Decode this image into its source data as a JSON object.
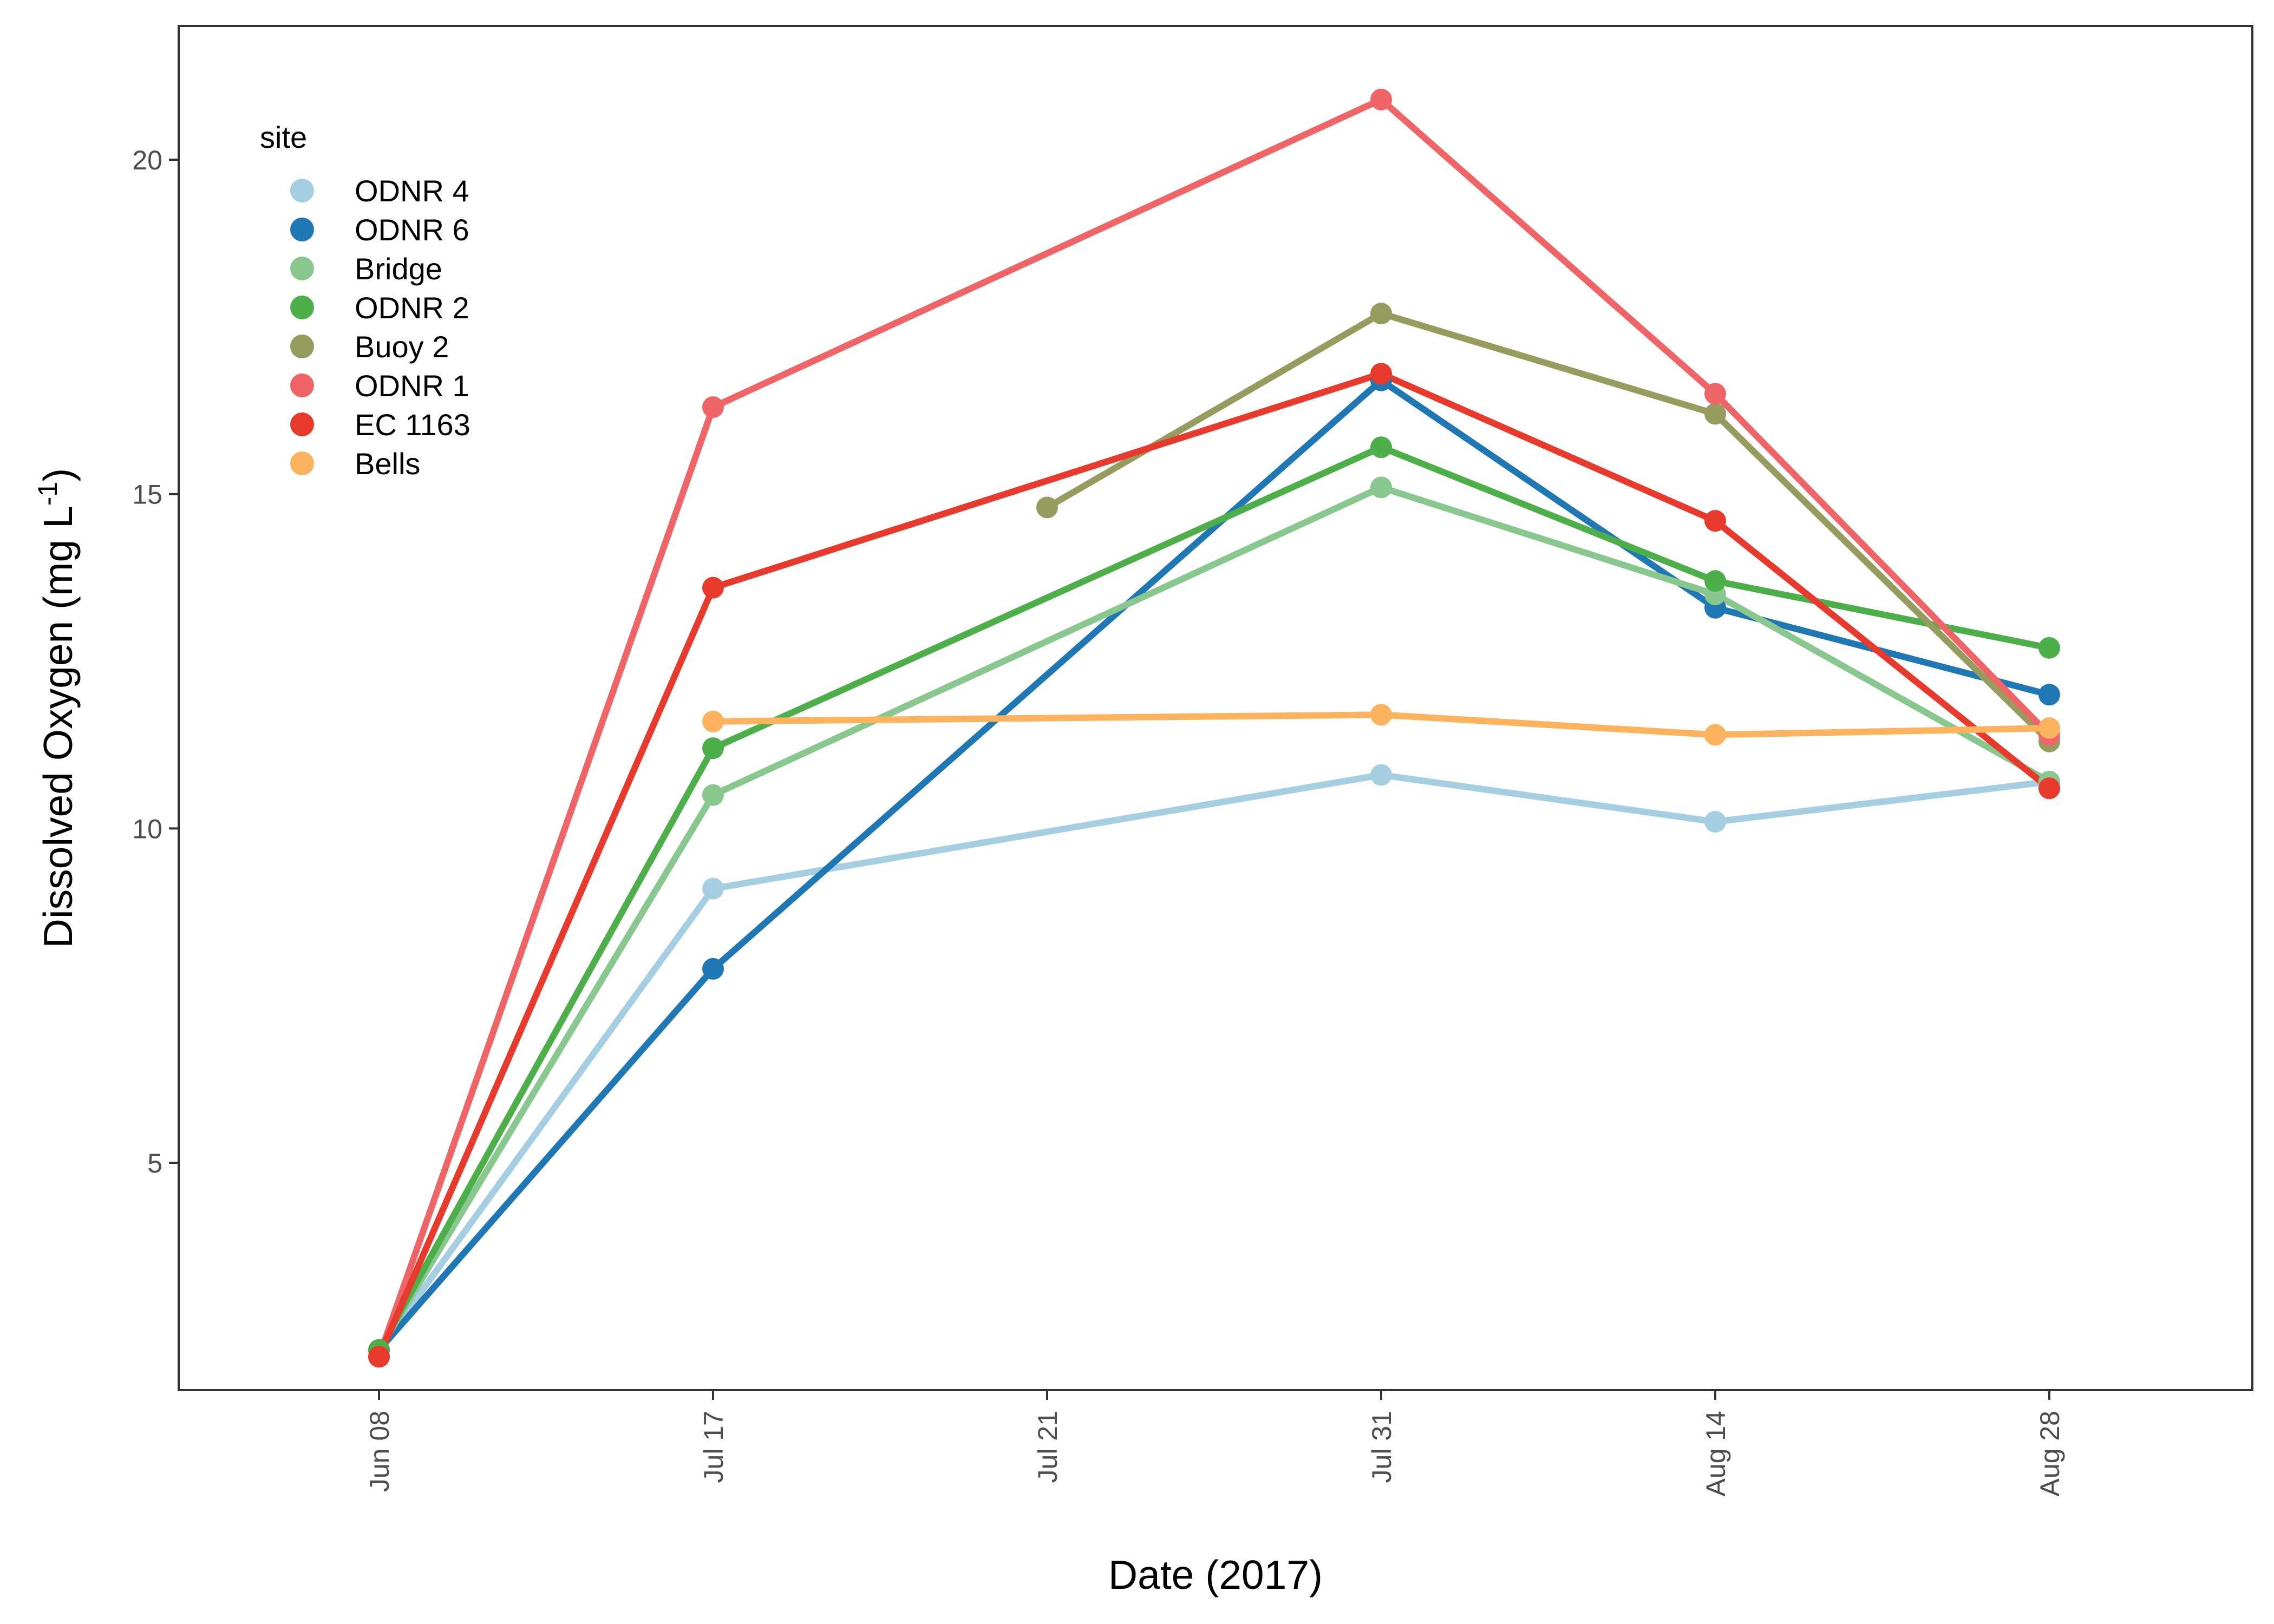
{
  "chart_data": {
    "type": "line",
    "xlabel": "Date (2017)",
    "ylabel": "Dissolved Oxygen (mg L",
    "ylabel_superscript": "-1",
    "ylabel_suffix": ")",
    "x": [
      "Jun 08",
      "Jul 17",
      "Jul 21",
      "Jul 31",
      "Aug 14",
      "Aug 28"
    ],
    "ylim": [
      1.6,
      22.0
    ],
    "yticks": [
      5,
      10,
      15,
      20
    ],
    "grid": false,
    "legend": {
      "title": "site",
      "placement": "top-left"
    },
    "series": [
      {
        "name": "ODNR 4",
        "color": "#a6cee3",
        "values": [
          2.2,
          9.1,
          null,
          10.8,
          10.1,
          10.7
        ]
      },
      {
        "name": "ODNR 6",
        "color": "#1f78b4",
        "values": [
          2.2,
          7.9,
          null,
          16.7,
          13.3,
          12.0
        ]
      },
      {
        "name": "Bridge",
        "color": "#88c78d",
        "values": [
          2.2,
          10.5,
          null,
          15.1,
          13.5,
          10.7
        ]
      },
      {
        "name": "ODNR 2",
        "color": "#4daf4a",
        "values": [
          2.2,
          11.2,
          null,
          15.7,
          13.7,
          12.7
        ]
      },
      {
        "name": "Buoy 2",
        "color": "#969b5e",
        "values": [
          null,
          null,
          14.8,
          17.7,
          16.2,
          11.3
        ]
      },
      {
        "name": "ODNR 1",
        "color": "#ef6567",
        "values": [
          2.1,
          16.3,
          null,
          20.9,
          16.5,
          11.4
        ]
      },
      {
        "name": "EC 1163",
        "color": "#e7392c",
        "values": [
          2.1,
          13.6,
          null,
          16.8,
          14.6,
          10.6
        ]
      },
      {
        "name": "Bells",
        "color": "#fdb35e",
        "values": [
          null,
          11.6,
          null,
          11.7,
          11.4,
          11.5
        ]
      }
    ]
  }
}
